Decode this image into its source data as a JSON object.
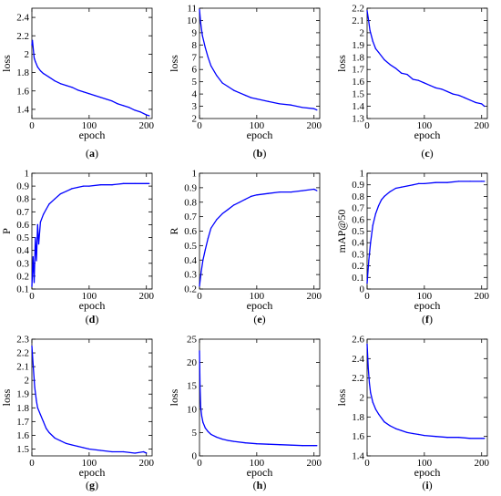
{
  "chart_data": [
    {
      "id": "a",
      "caption": "a",
      "type": "line",
      "xlabel": "epoch",
      "ylabel": "loss",
      "xlim": [
        0,
        210
      ],
      "ylim": [
        1.3,
        2.5
      ],
      "xticks": [
        "0",
        "100",
        "200"
      ],
      "xtick_values": [
        0,
        100,
        200
      ],
      "yticks": [
        "1.4",
        "1.6",
        "1.8",
        "2",
        "2.2",
        "2.4"
      ],
      "ytick_values": [
        1.4,
        1.6,
        1.8,
        2.0,
        2.2,
        2.4
      ],
      "color": "#0000ff",
      "series": [
        {
          "x": [
            0,
            1,
            2,
            4,
            6,
            10,
            15,
            20,
            30,
            40,
            50,
            60,
            70,
            80,
            90,
            100,
            110,
            120,
            130,
            140,
            150,
            160,
            170,
            180,
            190,
            200,
            205
          ],
          "y": [
            2.1,
            2.15,
            2.08,
            1.96,
            1.92,
            1.86,
            1.82,
            1.79,
            1.75,
            1.71,
            1.68,
            1.66,
            1.64,
            1.61,
            1.59,
            1.57,
            1.55,
            1.53,
            1.51,
            1.49,
            1.46,
            1.44,
            1.42,
            1.39,
            1.37,
            1.34,
            1.33
          ]
        }
      ]
    },
    {
      "id": "b",
      "caption": "b",
      "type": "line",
      "xlabel": "epoch",
      "ylabel": "loss",
      "xlim": [
        0,
        210
      ],
      "ylim": [
        2,
        11
      ],
      "xticks": [
        "0",
        "100",
        "200"
      ],
      "xtick_values": [
        0,
        100,
        200
      ],
      "yticks": [
        "2",
        "3",
        "4",
        "5",
        "6",
        "7",
        "8",
        "9",
        "10",
        "11"
      ],
      "ytick_values": [
        2,
        3,
        4,
        5,
        6,
        7,
        8,
        9,
        10,
        11
      ],
      "color": "#0000ff",
      "series": [
        {
          "x": [
            0,
            2,
            5,
            10,
            15,
            20,
            30,
            40,
            50,
            60,
            70,
            80,
            90,
            100,
            120,
            140,
            160,
            180,
            200,
            205
          ],
          "y": [
            10.9,
            9.8,
            8.8,
            7.8,
            7.0,
            6.3,
            5.5,
            4.9,
            4.6,
            4.3,
            4.1,
            3.9,
            3.7,
            3.6,
            3.4,
            3.2,
            3.1,
            2.9,
            2.8,
            2.7
          ]
        }
      ]
    },
    {
      "id": "c",
      "caption": "c",
      "type": "line",
      "xlabel": "epoch",
      "ylabel": "loss",
      "xlim": [
        0,
        210
      ],
      "ylim": [
        1.3,
        2.2
      ],
      "xticks": [
        "0",
        "100",
        "200"
      ],
      "xtick_values": [
        0,
        100,
        200
      ],
      "yticks": [
        "1.3",
        "1.4",
        "1.5",
        "1.6",
        "1.7",
        "1.8",
        "1.9",
        "2",
        "2.1",
        "2.2"
      ],
      "ytick_values": [
        1.3,
        1.4,
        1.5,
        1.6,
        1.7,
        1.8,
        1.9,
        2.0,
        2.1,
        2.2
      ],
      "color": "#0000ff",
      "series": [
        {
          "x": [
            0,
            2,
            5,
            10,
            15,
            20,
            30,
            40,
            50,
            60,
            70,
            80,
            90,
            100,
            110,
            120,
            130,
            140,
            150,
            160,
            170,
            180,
            190,
            200,
            205
          ],
          "y": [
            2.18,
            2.12,
            2.02,
            1.93,
            1.87,
            1.84,
            1.78,
            1.74,
            1.71,
            1.67,
            1.66,
            1.62,
            1.61,
            1.59,
            1.57,
            1.55,
            1.54,
            1.52,
            1.5,
            1.49,
            1.47,
            1.45,
            1.43,
            1.42,
            1.4
          ]
        }
      ]
    },
    {
      "id": "d",
      "caption": "d",
      "type": "line",
      "xlabel": "epoch",
      "ylabel": "P",
      "xlim": [
        0,
        210
      ],
      "ylim": [
        0.1,
        1.0
      ],
      "xticks": [
        "0",
        "100",
        "200"
      ],
      "xtick_values": [
        0,
        100,
        200
      ],
      "yticks": [
        "0.1",
        "0.2",
        "0.3",
        "0.4",
        "0.5",
        "0.6",
        "0.7",
        "0.8",
        "0.9",
        "1"
      ],
      "ytick_values": [
        0.1,
        0.2,
        0.3,
        0.4,
        0.5,
        0.6,
        0.7,
        0.8,
        0.9,
        1.0
      ],
      "color": "#0000ff",
      "series": [
        {
          "x": [
            0,
            2,
            4,
            6,
            8,
            10,
            12,
            15,
            20,
            25,
            30,
            40,
            50,
            60,
            70,
            80,
            90,
            100,
            120,
            140,
            160,
            180,
            200,
            205
          ],
          "y": [
            0.12,
            0.35,
            0.15,
            0.5,
            0.32,
            0.6,
            0.45,
            0.62,
            0.68,
            0.72,
            0.76,
            0.8,
            0.84,
            0.86,
            0.88,
            0.89,
            0.9,
            0.9,
            0.91,
            0.91,
            0.92,
            0.92,
            0.92,
            0.92
          ]
        }
      ]
    },
    {
      "id": "e",
      "caption": "e",
      "type": "line",
      "xlabel": "epoch",
      "ylabel": "R",
      "xlim": [
        0,
        210
      ],
      "ylim": [
        0.2,
        1.0
      ],
      "xticks": [
        "0",
        "100",
        "200"
      ],
      "xtick_values": [
        0,
        100,
        200
      ],
      "yticks": [
        "0.2",
        "0.3",
        "0.4",
        "0.5",
        "0.6",
        "0.7",
        "0.8",
        "0.9",
        "1"
      ],
      "ytick_values": [
        0.2,
        0.3,
        0.4,
        0.5,
        0.6,
        0.7,
        0.8,
        0.9,
        1.0
      ],
      "color": "#0000ff",
      "series": [
        {
          "x": [
            0,
            3,
            6,
            10,
            15,
            20,
            30,
            40,
            50,
            60,
            70,
            80,
            90,
            100,
            120,
            140,
            160,
            180,
            200,
            205
          ],
          "y": [
            0.22,
            0.32,
            0.4,
            0.47,
            0.55,
            0.62,
            0.68,
            0.72,
            0.75,
            0.78,
            0.8,
            0.82,
            0.84,
            0.85,
            0.86,
            0.87,
            0.87,
            0.88,
            0.89,
            0.88
          ]
        }
      ]
    },
    {
      "id": "f",
      "caption": "f",
      "type": "line",
      "xlabel": "epoch",
      "ylabel": "mAP@50",
      "xlim": [
        0,
        210
      ],
      "ylim": [
        0,
        1.0
      ],
      "xticks": [
        "0",
        "100",
        "200"
      ],
      "xtick_values": [
        0,
        100,
        200
      ],
      "yticks": [
        "0",
        "0.1",
        "0.2",
        "0.3",
        "0.4",
        "0.5",
        "0.6",
        "0.7",
        "0.8",
        "0.9",
        "1"
      ],
      "ytick_values": [
        0,
        0.1,
        0.2,
        0.3,
        0.4,
        0.5,
        0.6,
        0.7,
        0.8,
        0.9,
        1.0
      ],
      "color": "#0000ff",
      "series": [
        {
          "x": [
            0,
            3,
            6,
            10,
            15,
            20,
            25,
            30,
            40,
            50,
            60,
            70,
            80,
            90,
            100,
            120,
            140,
            160,
            180,
            200,
            205
          ],
          "y": [
            0.05,
            0.25,
            0.4,
            0.55,
            0.65,
            0.72,
            0.77,
            0.8,
            0.84,
            0.87,
            0.88,
            0.89,
            0.9,
            0.91,
            0.91,
            0.92,
            0.92,
            0.93,
            0.93,
            0.93,
            0.93
          ]
        }
      ]
    },
    {
      "id": "g",
      "caption": "g",
      "type": "line",
      "xlabel": "epoch",
      "ylabel": "loss",
      "xlim": [
        0,
        210
      ],
      "ylim": [
        1.45,
        2.3
      ],
      "xticks": [
        "0",
        "100",
        "200"
      ],
      "xtick_values": [
        0,
        100,
        200
      ],
      "yticks": [
        "1.5",
        "1.6",
        "1.7",
        "1.8",
        "1.9",
        "2",
        "2.1",
        "2.2",
        "2.3"
      ],
      "ytick_values": [
        1.5,
        1.6,
        1.7,
        1.8,
        1.9,
        2.0,
        2.1,
        2.2,
        2.3
      ],
      "color": "#0000ff",
      "series": [
        {
          "x": [
            0,
            2,
            5,
            8,
            10,
            15,
            20,
            25,
            30,
            40,
            50,
            60,
            70,
            80,
            90,
            100,
            120,
            140,
            160,
            180,
            195,
            200
          ],
          "y": [
            2.25,
            2.12,
            1.95,
            1.85,
            1.8,
            1.75,
            1.7,
            1.65,
            1.62,
            1.58,
            1.56,
            1.54,
            1.53,
            1.52,
            1.51,
            1.5,
            1.49,
            1.48,
            1.48,
            1.47,
            1.48,
            1.47
          ]
        }
      ]
    },
    {
      "id": "h",
      "caption": "h",
      "type": "line",
      "xlabel": "epoch",
      "ylabel": "loss",
      "xlim": [
        0,
        210
      ],
      "ylim": [
        0,
        25
      ],
      "xticks": [
        "0",
        "100",
        "200"
      ],
      "xtick_values": [
        0,
        100,
        200
      ],
      "yticks": [
        "0",
        "5",
        "10",
        "15",
        "20",
        "25"
      ],
      "ytick_values": [
        0,
        5,
        10,
        15,
        20,
        25
      ],
      "color": "#0000ff",
      "series": [
        {
          "x": [
            0,
            1,
            2,
            4,
            6,
            10,
            15,
            20,
            30,
            40,
            50,
            60,
            80,
            100,
            120,
            140,
            160,
            180,
            200,
            205
          ],
          "y": [
            22.5,
            15.0,
            10.5,
            8.5,
            7.2,
            6.0,
            5.2,
            4.6,
            4.0,
            3.6,
            3.3,
            3.1,
            2.8,
            2.6,
            2.5,
            2.4,
            2.3,
            2.2,
            2.2,
            2.2
          ]
        }
      ]
    },
    {
      "id": "i",
      "caption": "i",
      "type": "line",
      "xlabel": "epoch",
      "ylabel": "loss",
      "xlim": [
        0,
        210
      ],
      "ylim": [
        1.4,
        2.6
      ],
      "xticks": [
        "0",
        "100",
        "200"
      ],
      "xtick_values": [
        0,
        100,
        200
      ],
      "yticks": [
        "1.4",
        "1.6",
        "1.8",
        "2",
        "2.2",
        "2.4",
        "2.6"
      ],
      "ytick_values": [
        1.4,
        1.6,
        1.8,
        2.0,
        2.2,
        2.4,
        2.6
      ],
      "color": "#0000ff",
      "series": [
        {
          "x": [
            0,
            2,
            4,
            6,
            10,
            15,
            20,
            25,
            30,
            40,
            50,
            60,
            70,
            80,
            90,
            100,
            120,
            140,
            160,
            180,
            200,
            205
          ],
          "y": [
            2.55,
            2.3,
            2.15,
            2.05,
            1.95,
            1.88,
            1.83,
            1.79,
            1.75,
            1.71,
            1.68,
            1.66,
            1.64,
            1.63,
            1.62,
            1.61,
            1.6,
            1.59,
            1.59,
            1.58,
            1.58,
            1.58
          ]
        }
      ]
    }
  ]
}
